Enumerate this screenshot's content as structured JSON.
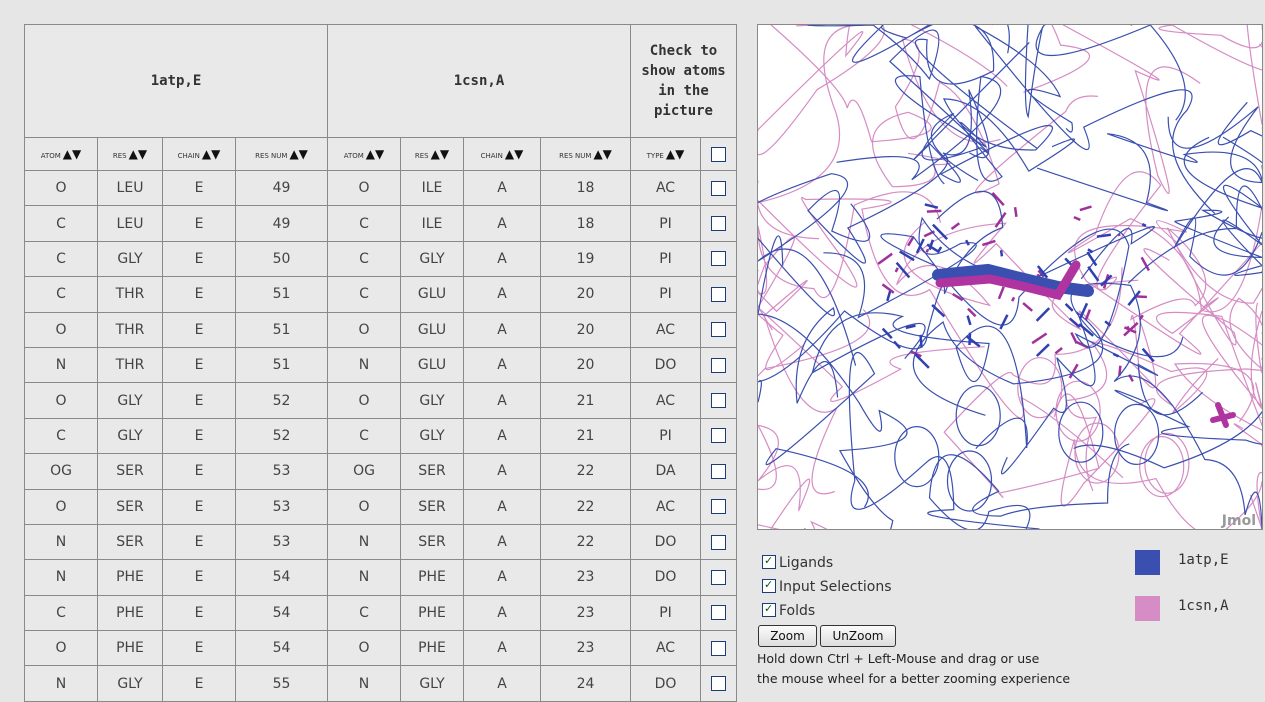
{
  "table": {
    "groups": [
      "1atp,E",
      "1csn,A",
      "Check to show atoms in the picture"
    ],
    "columns": [
      "ATOM",
      "RES",
      "CHAIN",
      "RES NUM",
      "ATOM",
      "RES",
      "CHAIN",
      "RES NUM",
      "TYPE"
    ],
    "rows": [
      [
        "O",
        "LEU",
        "E",
        49,
        "O",
        "ILE",
        "A",
        18,
        "AC"
      ],
      [
        "C",
        "LEU",
        "E",
        49,
        "C",
        "ILE",
        "A",
        18,
        "PI"
      ],
      [
        "C",
        "GLY",
        "E",
        50,
        "C",
        "GLY",
        "A",
        19,
        "PI"
      ],
      [
        "C",
        "THR",
        "E",
        51,
        "C",
        "GLU",
        "A",
        20,
        "PI"
      ],
      [
        "O",
        "THR",
        "E",
        51,
        "O",
        "GLU",
        "A",
        20,
        "AC"
      ],
      [
        "N",
        "THR",
        "E",
        51,
        "N",
        "GLU",
        "A",
        20,
        "DO"
      ],
      [
        "O",
        "GLY",
        "E",
        52,
        "O",
        "GLY",
        "A",
        21,
        "AC"
      ],
      [
        "C",
        "GLY",
        "E",
        52,
        "C",
        "GLY",
        "A",
        21,
        "PI"
      ],
      [
        "OG",
        "SER",
        "E",
        53,
        "OG",
        "SER",
        "A",
        22,
        "DA"
      ],
      [
        "O",
        "SER",
        "E",
        53,
        "O",
        "SER",
        "A",
        22,
        "AC"
      ],
      [
        "N",
        "SER",
        "E",
        53,
        "N",
        "SER",
        "A",
        22,
        "DO"
      ],
      [
        "N",
        "PHE",
        "E",
        54,
        "N",
        "PHE",
        "A",
        23,
        "DO"
      ],
      [
        "C",
        "PHE",
        "E",
        54,
        "C",
        "PHE",
        "A",
        23,
        "PI"
      ],
      [
        "O",
        "PHE",
        "E",
        54,
        "O",
        "PHE",
        "A",
        23,
        "AC"
      ],
      [
        "N",
        "GLY",
        "E",
        55,
        "N",
        "GLY",
        "A",
        24,
        "DO"
      ]
    ]
  },
  "viewer": {
    "watermark": "Jmol",
    "legend": [
      {
        "name": "1atp,E",
        "color": "#3a4fb0"
      },
      {
        "name": "1csn,A",
        "color": "#d68cc4"
      }
    ],
    "options": [
      "Ligands",
      "Input Selections",
      "Folds"
    ],
    "buttons": [
      "Zoom",
      "UnZoom"
    ],
    "hint": [
      "Hold down Ctrl + Left-Mouse and drag or use",
      "the mouse wheel for a better zooming experience"
    ]
  }
}
